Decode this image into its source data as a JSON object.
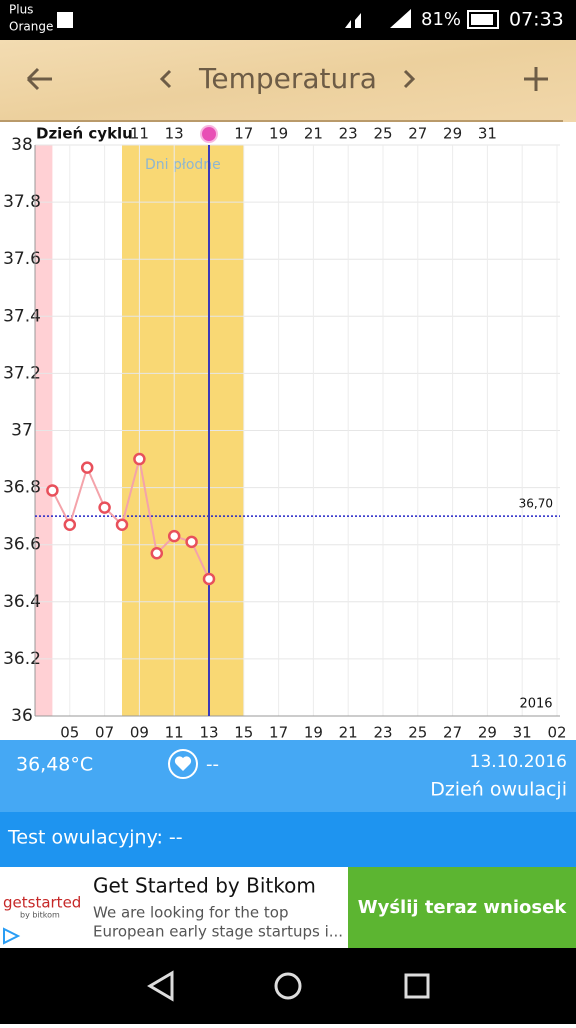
{
  "status_bar": {
    "carrier_1": "Plus",
    "carrier_2": "Orange",
    "battery": "81%",
    "time": "07:33"
  },
  "header": {
    "title": "Temperatura"
  },
  "chart_data": {
    "type": "line",
    "top_axis_label": "Dzień cyklu",
    "x": [
      4,
      5,
      6,
      7,
      8,
      9,
      10,
      11,
      12,
      13
    ],
    "values": [
      36.79,
      36.67,
      36.87,
      36.73,
      36.67,
      36.9,
      36.57,
      36.63,
      36.61,
      36.48
    ],
    "color": "#f4a3aa",
    "marker_color": "#e8505b",
    "xlim": [
      3,
      33
    ],
    "ylim": [
      36,
      38
    ],
    "xticks": [
      {
        "value": 5,
        "label": "05"
      },
      {
        "value": 7,
        "label": "07"
      },
      {
        "value": 9,
        "label": "09"
      },
      11,
      13,
      15,
      17,
      19,
      21,
      23,
      25,
      27,
      29,
      31,
      {
        "value": 33,
        "label": "02"
      }
    ],
    "top_ticks": [
      {
        "value": 9,
        "label": "11"
      },
      {
        "value": 11,
        "label": "13"
      },
      {
        "value": 15,
        "label": "17"
      },
      {
        "value": 17,
        "label": "19"
      },
      {
        "value": 19,
        "label": "21"
      },
      {
        "value": 21,
        "label": "23"
      },
      {
        "value": 23,
        "label": "25"
      },
      {
        "value": 25,
        "label": "27"
      },
      {
        "value": 27,
        "label": "29"
      },
      {
        "value": 29,
        "label": "31"
      }
    ],
    "yticks": [
      36,
      36.2,
      36.4,
      36.6,
      36.8,
      37,
      37.2,
      37.4,
      37.6,
      37.8,
      38
    ],
    "grid": true,
    "coverline": {
      "value": 36.7,
      "label": "36,70",
      "color": "#2424c8"
    },
    "fertile_window": {
      "range": [
        8,
        15
      ],
      "label": "Dni płodne",
      "color": "#f9d874"
    },
    "period": {
      "range": [
        3,
        4
      ],
      "color": "#ffd0d4"
    },
    "ovulation_day": 13,
    "ovulation_color": "#3a3ab8",
    "year_label": "2016"
  },
  "summary": {
    "temperature": "36,48°C",
    "test_value": "--",
    "date": "13.10.2016",
    "status": "Dzień owulacji"
  },
  "test": {
    "label": "Test owulacyjny: --"
  },
  "ad": {
    "logo": "getstarted",
    "logo_sub": "by bitkom",
    "title": "Get Started by Bitkom",
    "line_1": "We are looking for the top",
    "line_2": "European early stage startups i...",
    "button": "Wyślij teraz wniosek"
  }
}
